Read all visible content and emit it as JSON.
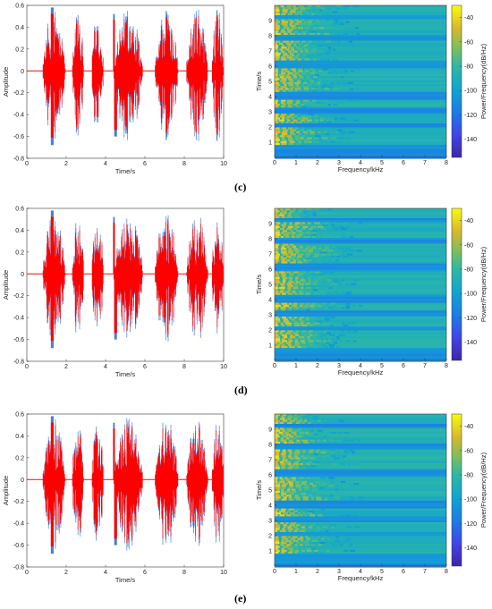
{
  "panels": [
    {
      "label": "(c)"
    },
    {
      "label": "(d)"
    },
    {
      "label": "(e)"
    }
  ],
  "colors": {
    "waveform_original": "#4a7fd4",
    "waveform_overlay": "#ff0000"
  },
  "chart_data": [
    {
      "type": "line",
      "panel": "c-waveform",
      "xlabel": "Time/s",
      "ylabel": "Amplitude",
      "xlim": [
        0,
        10
      ],
      "ylim": [
        -0.8,
        0.6
      ],
      "xticks": [
        0,
        2,
        4,
        6,
        8,
        10
      ],
      "yticks": [
        -0.8,
        -0.6,
        -0.4,
        -0.2,
        0,
        0.2,
        0.4,
        0.6
      ],
      "segments": [
        [
          0.8,
          1.95
        ],
        [
          2.3,
          2.9
        ],
        [
          3.3,
          3.9
        ],
        [
          4.4,
          5.9
        ],
        [
          6.5,
          7.7
        ],
        [
          8.1,
          9.2
        ],
        [
          9.4,
          10.0
        ]
      ],
      "envelope_peaks": [
        {
          "x": 1.3,
          "y": 0.58
        },
        {
          "x": 1.3,
          "y": -0.68
        },
        {
          "x": 4.4,
          "y": 0.52
        },
        {
          "x": 4.5,
          "y": -0.6
        }
      ]
    },
    {
      "type": "heatmap",
      "panel": "c-spectrogram",
      "xlabel": "Frequency/kHz",
      "ylabel": "Time/s",
      "colorbar_label": "Power/Frequency(dB/Hz)",
      "xlim": [
        0,
        8
      ],
      "ylim": [
        0,
        10
      ],
      "xticks": [
        0,
        1,
        2,
        3,
        4,
        5,
        6,
        7,
        8
      ],
      "yticks": [
        1,
        2,
        3,
        4,
        5,
        6,
        7,
        8,
        9
      ],
      "clim": [
        -155,
        -30
      ],
      "colorbar_ticks": [
        -40,
        -60,
        -80,
        -100,
        -120,
        -140
      ]
    },
    {
      "type": "line",
      "panel": "d-waveform",
      "xlabel": "Time/s",
      "ylabel": "Amplitude",
      "xlim": [
        0,
        10
      ],
      "ylim": [
        -0.8,
        0.6
      ],
      "xticks": [
        0,
        2,
        4,
        6,
        8,
        10
      ],
      "yticks": [
        -0.8,
        -0.6,
        -0.4,
        -0.2,
        0,
        0.2,
        0.4,
        0.6
      ],
      "segments": [
        [
          0.8,
          1.95
        ],
        [
          2.3,
          2.9
        ],
        [
          3.3,
          3.9
        ],
        [
          4.4,
          5.9
        ],
        [
          6.5,
          7.7
        ],
        [
          8.1,
          9.2
        ],
        [
          9.4,
          10.0
        ]
      ],
      "envelope_peaks": [
        {
          "x": 1.3,
          "y": 0.58
        },
        {
          "x": 1.3,
          "y": -0.68
        },
        {
          "x": 4.4,
          "y": 0.52
        },
        {
          "x": 4.5,
          "y": -0.6
        }
      ]
    },
    {
      "type": "heatmap",
      "panel": "d-spectrogram",
      "xlabel": "Frequency/kHz",
      "ylabel": "Time/s",
      "colorbar_label": "Power/Frequency(dB/Hz)",
      "xlim": [
        0,
        8
      ],
      "ylim": [
        0,
        10
      ],
      "xticks": [
        0,
        1,
        2,
        3,
        4,
        5,
        6,
        7,
        8
      ],
      "yticks": [
        1,
        2,
        3,
        4,
        5,
        6,
        7,
        8,
        9
      ],
      "clim": [
        -155,
        -30
      ],
      "colorbar_ticks": [
        -40,
        -60,
        -80,
        -100,
        -120,
        -140
      ]
    },
    {
      "type": "line",
      "panel": "e-waveform",
      "xlabel": "Time/s",
      "ylabel": "Amplitude",
      "xlim": [
        0,
        10
      ],
      "ylim": [
        -0.8,
        0.6
      ],
      "xticks": [
        0,
        2,
        4,
        6,
        8,
        10
      ],
      "yticks": [
        -0.8,
        -0.6,
        -0.4,
        -0.2,
        0,
        0.2,
        0.4,
        0.6
      ],
      "segments": [
        [
          0.8,
          1.95
        ],
        [
          2.3,
          2.9
        ],
        [
          3.3,
          3.9
        ],
        [
          4.4,
          5.9
        ],
        [
          6.5,
          7.7
        ],
        [
          8.1,
          9.2
        ],
        [
          9.4,
          10.0
        ]
      ],
      "envelope_peaks": [
        {
          "x": 1.3,
          "y": 0.58
        },
        {
          "x": 1.3,
          "y": -0.68
        },
        {
          "x": 4.4,
          "y": 0.52
        },
        {
          "x": 4.5,
          "y": -0.6
        }
      ]
    },
    {
      "type": "heatmap",
      "panel": "e-spectrogram",
      "xlabel": "Frequency/kHz",
      "ylabel": "Time/s",
      "colorbar_label": "Power/Frequency(dB/Hz)",
      "xlim": [
        0,
        8
      ],
      "ylim": [
        0,
        10
      ],
      "xticks": [
        0,
        1,
        2,
        3,
        4,
        5,
        6,
        7,
        8
      ],
      "yticks": [
        1,
        2,
        3,
        4,
        5,
        6,
        7,
        8,
        9
      ],
      "clim": [
        -155,
        -30
      ],
      "colorbar_ticks": [
        -40,
        -60,
        -80,
        -100,
        -120,
        -140
      ]
    }
  ]
}
